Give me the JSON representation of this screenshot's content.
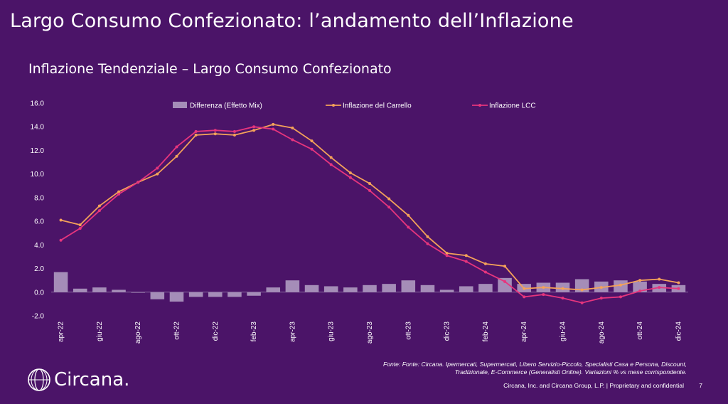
{
  "header": {
    "slide_title": "Largo Consumo Confezionato: l’andamento dell’Inflazione"
  },
  "chart_data": {
    "type": "bar+line",
    "title": "Inflazione Tendenziale – Largo Consumo Confezionato",
    "categories": [
      "apr-22",
      "mag-22",
      "giu-22",
      "lug-22",
      "ago-22",
      "set-22",
      "ott-22",
      "nov-22",
      "dic-22",
      "gen-23",
      "feb-23",
      "mar-23",
      "apr-23",
      "mag-23",
      "giu-23",
      "lug-23",
      "ago-23",
      "set-23",
      "ott-23",
      "nov-23",
      "dic-23",
      "gen-24",
      "feb-24",
      "mar-24",
      "apr-24",
      "mag-24",
      "giu-24",
      "lug-24",
      "ago-24",
      "set-24",
      "ott-24",
      "nov-24",
      "dic-24"
    ],
    "tick_labels": [
      "apr-22",
      "giu-22",
      "ago-22",
      "ott-22",
      "dic-22",
      "feb-23",
      "apr-23",
      "giu-23",
      "ago-23",
      "ott-23",
      "dic-23",
      "feb-24",
      "apr-24",
      "giu-24",
      "ago-24",
      "ott-24",
      "dic-24"
    ],
    "series": [
      {
        "name": "Differenza (Effetto Mix)",
        "type": "bar",
        "color": "#a58db8",
        "values": [
          1.7,
          0.3,
          0.4,
          0.2,
          0.0,
          -0.6,
          -0.8,
          -0.4,
          -0.4,
          -0.4,
          -0.3,
          0.4,
          1.0,
          0.6,
          0.5,
          0.4,
          0.6,
          0.7,
          1.0,
          0.6,
          0.2,
          0.5,
          0.7,
          1.2,
          0.7,
          0.8,
          0.8,
          1.1,
          0.9,
          1.0,
          0.9,
          0.7,
          0.6
        ]
      },
      {
        "name": "Inflazione del Carrello",
        "type": "line",
        "color": "#f4a259",
        "values": [
          6.1,
          5.7,
          7.3,
          8.5,
          9.3,
          10.0,
          11.5,
          13.3,
          13.4,
          13.3,
          13.7,
          14.2,
          13.9,
          12.8,
          11.4,
          10.1,
          9.2,
          7.9,
          6.5,
          4.7,
          3.3,
          3.1,
          2.4,
          2.2,
          0.3,
          0.4,
          0.3,
          0.2,
          0.4,
          0.6,
          1.0,
          1.1,
          0.8
        ]
      },
      {
        "name": "Inflazione LCC",
        "type": "line",
        "color": "#e6357d",
        "values": [
          4.4,
          5.4,
          6.9,
          8.3,
          9.3,
          10.5,
          12.3,
          13.6,
          13.7,
          13.6,
          14.0,
          13.8,
          12.9,
          12.1,
          10.8,
          9.7,
          8.6,
          7.2,
          5.5,
          4.1,
          3.1,
          2.6,
          1.7,
          0.9,
          -0.4,
          -0.2,
          -0.5,
          -0.9,
          -0.5,
          -0.4,
          0.1,
          0.4,
          0.3
        ]
      }
    ],
    "ylim": [
      -2.0,
      16.0
    ],
    "yticks": [
      "-2.0",
      "0.0",
      "2.0",
      "4.0",
      "6.0",
      "8.0",
      "10.0",
      "12.0",
      "14.0",
      "16.0"
    ],
    "legend": [
      "Differenza (Effetto Mix)",
      "Inflazione del Carrello",
      "Inflazione LCC"
    ],
    "legend_position": "top",
    "grid": false
  },
  "footer": {
    "source": "Fonte: Fonte: Circana. Ipermercati, Supermercati, Libero Servizio-Piccolo,  Specialisti Casa e Persona, Discount, Tradizionale, E-Commerce (Generalisti Online). Variazioni % vs mese corrispondente.",
    "copyright": "Circana, Inc. and Circana Group, L.P. |  Proprietary and confidential",
    "page_number": "7",
    "logo_text": "Circana."
  }
}
